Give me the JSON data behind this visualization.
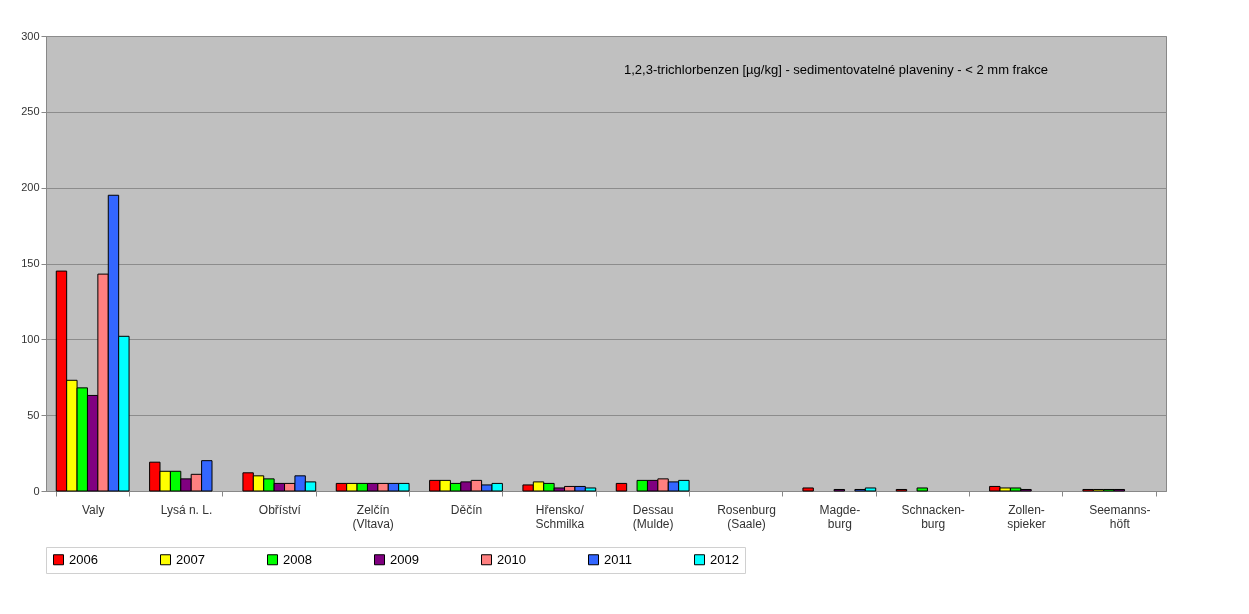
{
  "chart_data": {
    "type": "bar",
    "title": "1,2,3-trichlorbenzen [µg/kg] - sedimentovatelné plaveniny - < 2 mm frakce",
    "categories": [
      "Valy",
      "Lysá n. L.",
      "Obříství",
      "Zelčín\n(Vltava)",
      "Děčín",
      "Hřensko/\nSchmilka",
      "Dessau\n(Mulde)",
      "Rosenburg\n(Saale)",
      "Magde-\nburg",
      "Schnacken-\nburg",
      "Zollen-\nspieker",
      "Seemanns-\nhöft"
    ],
    "series": [
      {
        "name": "2006",
        "color": "#ff0000",
        "values": [
          145,
          19,
          12,
          5,
          7,
          4,
          5,
          null,
          2,
          1,
          3,
          1
        ]
      },
      {
        "name": "2007",
        "color": "#ffff00",
        "values": [
          73,
          13,
          10,
          5,
          7,
          6,
          null,
          null,
          null,
          null,
          2,
          1
        ]
      },
      {
        "name": "2008",
        "color": "#00ff00",
        "values": [
          68,
          13,
          8,
          5,
          5,
          5,
          7,
          null,
          null,
          2,
          2,
          1
        ]
      },
      {
        "name": "2009",
        "color": "#800080",
        "values": [
          63,
          8,
          5,
          5,
          6,
          2,
          7,
          null,
          1,
          null,
          1,
          1
        ]
      },
      {
        "name": "2010",
        "color": "#ff8080",
        "values": [
          143,
          11,
          5,
          5,
          7,
          3,
          8,
          null,
          null,
          null,
          null,
          null
        ]
      },
      {
        "name": "2011",
        "color": "#3366ff",
        "values": [
          195,
          20,
          10,
          5,
          4,
          3,
          6,
          null,
          1,
          null,
          null,
          null
        ]
      },
      {
        "name": "2012",
        "color": "#00ffff",
        "values": [
          102,
          null,
          6,
          5,
          5,
          2,
          7,
          null,
          2,
          null,
          null,
          null
        ]
      }
    ],
    "ylim": [
      0,
      300
    ],
    "yticks": [
      0,
      50,
      100,
      150,
      200,
      250,
      300
    ],
    "grid": "y",
    "legend": "bottom"
  }
}
